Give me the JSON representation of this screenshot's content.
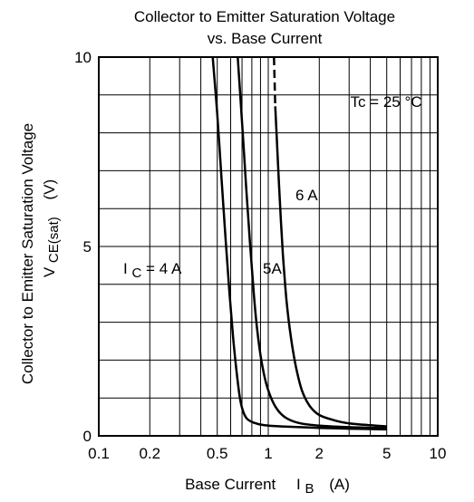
{
  "chart_data": {
    "type": "line",
    "title_line1": "Collector to Emitter Saturation Voltage",
    "title_line2": "vs. Base Current",
    "ylabel_main": "Collector to Emitter Saturation Voltage",
    "ylabel_sym": "V",
    "ylabel_sub": "CE(sat)",
    "ylabel_unit": "(V)",
    "xlabel_main": "Base Current",
    "xlabel_sym": "I",
    "xlabel_sub": "B",
    "xlabel_unit": "(A)",
    "x_scale": "log",
    "xlim": [
      0.1,
      10
    ],
    "ylim": [
      0,
      10
    ],
    "x_ticks": [
      "0.1",
      "0.2",
      "0.5",
      "1",
      "2",
      "5",
      "10"
    ],
    "y_ticks": [
      "0",
      "5",
      "10"
    ],
    "grid": true,
    "condition": "Tc = 25 °C",
    "series": [
      {
        "name": "4 A",
        "label_prefix": "I",
        "label_sub": "C",
        "label_suffix": "= 4 A",
        "dash_until_y": null,
        "points": [
          [
            0.47,
            10
          ],
          [
            0.5,
            8.5
          ],
          [
            0.53,
            6.8
          ],
          [
            0.56,
            5.2
          ],
          [
            0.59,
            3.8
          ],
          [
            0.62,
            2.6
          ],
          [
            0.65,
            1.7
          ],
          [
            0.68,
            1.0
          ],
          [
            0.71,
            0.65
          ],
          [
            0.75,
            0.45
          ],
          [
            0.82,
            0.35
          ],
          [
            0.95,
            0.28
          ],
          [
            1.2,
            0.25
          ],
          [
            2,
            0.21
          ],
          [
            3,
            0.19
          ],
          [
            5,
            0.17
          ]
        ]
      },
      {
        "name": "5A",
        "label": "5A",
        "dash_until_y": null,
        "points": [
          [
            0.66,
            10
          ],
          [
            0.7,
            8.3
          ],
          [
            0.74,
            6.6
          ],
          [
            0.78,
            5.1
          ],
          [
            0.82,
            3.8
          ],
          [
            0.86,
            2.8
          ],
          [
            0.91,
            2.0
          ],
          [
            0.97,
            1.4
          ],
          [
            1.05,
            0.95
          ],
          [
            1.15,
            0.65
          ],
          [
            1.3,
            0.45
          ],
          [
            1.55,
            0.33
          ],
          [
            2,
            0.27
          ],
          [
            3,
            0.23
          ],
          [
            5,
            0.2
          ]
        ]
      },
      {
        "name": "6 A",
        "label": "6 A",
        "dash_until_y": 8.5,
        "points": [
          [
            1.08,
            10
          ],
          [
            1.1,
            8.7
          ],
          [
            1.13,
            7.6
          ],
          [
            1.17,
            6.2
          ],
          [
            1.22,
            4.8
          ],
          [
            1.28,
            3.6
          ],
          [
            1.36,
            2.6
          ],
          [
            1.46,
            1.8
          ],
          [
            1.58,
            1.2
          ],
          [
            1.75,
            0.8
          ],
          [
            2,
            0.55
          ],
          [
            2.5,
            0.4
          ],
          [
            3,
            0.33
          ],
          [
            4,
            0.28
          ],
          [
            5,
            0.25
          ]
        ]
      }
    ]
  }
}
